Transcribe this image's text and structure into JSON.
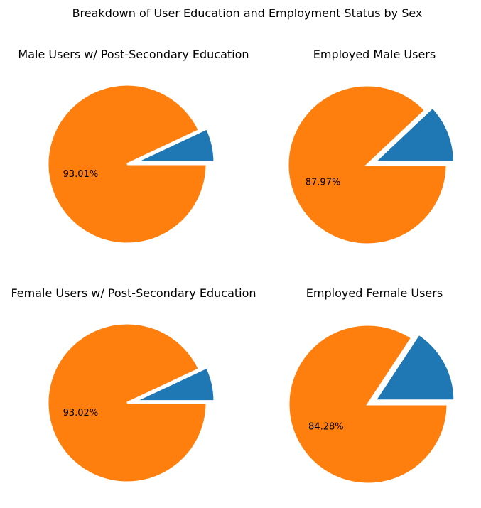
{
  "figure": {
    "title": "Breakdown of User Education and Employment Status by Sex"
  },
  "chart_data": [
    {
      "type": "pie",
      "title": "Male Users w/ Post-Secondary Education",
      "values": [
        6.99,
        93.01
      ],
      "colors": [
        "#1f77b4",
        "#ff7f0e"
      ],
      "shown_labels": [
        "",
        "93.01%"
      ],
      "explode": [
        0.1,
        0
      ],
      "start_angle_deg": 0,
      "counterclock": true,
      "legend": "none"
    },
    {
      "type": "pie",
      "title": "Employed Male Users",
      "values": [
        12.03,
        87.97
      ],
      "colors": [
        "#1f77b4",
        "#ff7f0e"
      ],
      "shown_labels": [
        "",
        "87.97%"
      ],
      "explode": [
        0.1,
        0
      ],
      "start_angle_deg": 0,
      "counterclock": true,
      "legend": "none"
    },
    {
      "type": "pie",
      "title": "Female Users w/ Post-Secondary Education",
      "values": [
        6.98,
        93.02
      ],
      "colors": [
        "#1f77b4",
        "#ff7f0e"
      ],
      "shown_labels": [
        "",
        "93.02%"
      ],
      "explode": [
        0.1,
        0
      ],
      "start_angle_deg": 0,
      "counterclock": true,
      "legend": "none"
    },
    {
      "type": "pie",
      "title": "Employed Female Users",
      "values": [
        15.72,
        84.28
      ],
      "colors": [
        "#1f77b4",
        "#ff7f0e"
      ],
      "shown_labels": [
        "",
        "84.28%"
      ],
      "explode": [
        0.1,
        0
      ],
      "start_angle_deg": 0,
      "counterclock": true,
      "legend": "none"
    }
  ]
}
